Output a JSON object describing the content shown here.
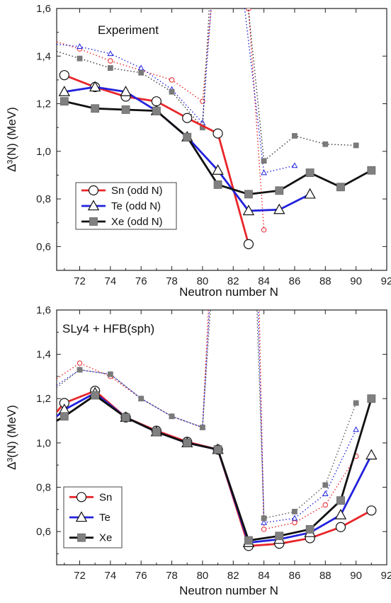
{
  "chart_data": [
    {
      "type": "line",
      "annotation": "Experiment",
      "xlabel": "Neutron number N",
      "ylabel": "Δ³(N) (MeV)",
      "xlim": [
        70.5,
        92
      ],
      "ylim": [
        0.5,
        1.6
      ],
      "xticks": [
        "72",
        "74",
        "76",
        "78",
        "80",
        "82",
        "84",
        "86",
        "88",
        "90",
        "92"
      ],
      "yticks": [
        "0,6",
        "0,8",
        "1,0",
        "1,2",
        "1,4",
        "1,6"
      ],
      "legend_position": "lower-left",
      "legend": [
        {
          "label": "Sn (odd N)",
          "color": "#e8262a",
          "marker": "circle"
        },
        {
          "label": "Te (odd N)",
          "color": "#2222dd",
          "marker": "triangle"
        },
        {
          "label": "Xe (odd N)",
          "color": "#111111",
          "marker": "square"
        }
      ],
      "series": [
        {
          "name": "Sn (odd N)",
          "style": "solid",
          "color": "#e8262a",
          "marker": "circle",
          "x": [
            71,
            73,
            75,
            77,
            79,
            81,
            83
          ],
          "y": [
            1.32,
            1.27,
            1.23,
            1.21,
            1.14,
            1.075,
            0.61
          ]
        },
        {
          "name": "Te (odd N)",
          "style": "solid",
          "color": "#2222dd",
          "marker": "triangle",
          "x": [
            71,
            73,
            75,
            77,
            79,
            81,
            83,
            85,
            87
          ],
          "y": [
            1.25,
            1.27,
            1.25,
            1.17,
            1.06,
            0.92,
            0.75,
            0.755,
            0.82
          ]
        },
        {
          "name": "Xe (odd N)",
          "style": "solid",
          "color": "#111111",
          "marker": "square",
          "x": [
            71,
            73,
            75,
            77,
            79,
            81,
            83,
            85,
            87,
            89,
            91
          ],
          "y": [
            1.21,
            1.18,
            1.175,
            1.17,
            1.06,
            0.86,
            0.82,
            0.835,
            0.91,
            0.85,
            0.92
          ]
        },
        {
          "style": "dotted",
          "color": "#e8262a",
          "marker": "circle-small",
          "x": [
            70.5,
            72,
            74,
            76,
            78,
            80,
            81,
            82,
            83,
            84
          ],
          "y": [
            1.46,
            1.43,
            1.38,
            1.34,
            1.3,
            1.21,
            1.9,
            1.9,
            1.6,
            0.67
          ]
        },
        {
          "style": "dotted",
          "color": "#2222dd",
          "marker": "triangle-small",
          "x": [
            70.5,
            72,
            74,
            76,
            78,
            80,
            80.9,
            82.2,
            84,
            86
          ],
          "y": [
            1.45,
            1.44,
            1.41,
            1.35,
            1.26,
            1.12,
            1.9,
            1.9,
            0.91,
            0.94
          ]
        },
        {
          "style": "dotted",
          "color": "#333333",
          "marker": "square-small",
          "x": [
            70.5,
            72,
            74,
            76,
            78,
            80,
            80.7,
            82.5,
            84,
            86,
            88,
            90
          ],
          "y": [
            1.42,
            1.39,
            1.35,
            1.33,
            1.25,
            1.1,
            1.9,
            1.9,
            0.96,
            1.065,
            1.03,
            1.025
          ]
        }
      ]
    },
    {
      "type": "line",
      "annotation": "SLy4 + HFB(sph)",
      "xlabel": "Neutron number N",
      "ylabel": "Δ³(N) (MeV)",
      "xlim": [
        70.5,
        92
      ],
      "ylim": [
        0.45,
        1.6
      ],
      "xticks": [
        "72",
        "74",
        "76",
        "78",
        "80",
        "82",
        "84",
        "86",
        "88",
        "90",
        "92"
      ],
      "yticks": [
        "0,6",
        "0,8",
        "1,0",
        "1,2",
        "1,4",
        "1,6"
      ],
      "legend_position": "lower-left",
      "legend": [
        {
          "label": "Sn",
          "color": "#e8262a",
          "marker": "circle"
        },
        {
          "label": "Te",
          "color": "#2222dd",
          "marker": "triangle"
        },
        {
          "label": "Xe",
          "color": "#111111",
          "marker": "square"
        }
      ],
      "series": [
        {
          "name": "Sn",
          "style": "solid",
          "color": "#e8262a",
          "marker": "circle",
          "x": [
            70.5,
            71,
            73,
            75,
            77,
            79,
            81,
            83,
            85,
            87,
            89,
            91
          ],
          "y": [
            1.14,
            1.18,
            1.235,
            1.115,
            1.055,
            1.005,
            0.97,
            0.535,
            0.545,
            0.57,
            0.62,
            0.695
          ]
        },
        {
          "name": "Te",
          "style": "solid",
          "color": "#2222dd",
          "marker": "triangle",
          "x": [
            70.5,
            71,
            73,
            75,
            77,
            79,
            81,
            83,
            85,
            87,
            89,
            91
          ],
          "y": [
            1.12,
            1.15,
            1.225,
            1.115,
            1.05,
            1.0,
            0.97,
            0.55,
            0.565,
            0.595,
            0.675,
            0.945
          ]
        },
        {
          "name": "Xe",
          "style": "solid",
          "color": "#111111",
          "marker": "square",
          "x": [
            70.5,
            71,
            73,
            75,
            77,
            79,
            81,
            83,
            85,
            87,
            89,
            91
          ],
          "y": [
            1.1,
            1.12,
            1.215,
            1.115,
            1.05,
            1.0,
            0.97,
            0.56,
            0.58,
            0.61,
            0.74,
            1.2
          ]
        },
        {
          "style": "dotted",
          "color": "#e8262a",
          "marker": "circle-small",
          "x": [
            70.5,
            72,
            74,
            76,
            78,
            80,
            80.6,
            83.6,
            84,
            86,
            88,
            90
          ],
          "y": [
            1.29,
            1.36,
            1.3,
            1.2,
            1.12,
            1.07,
            1.9,
            1.9,
            0.61,
            0.64,
            0.72,
            0.94
          ]
        },
        {
          "style": "dotted",
          "color": "#2222dd",
          "marker": "triangle-small",
          "x": [
            70.5,
            72,
            74,
            76,
            78,
            80,
            80.7,
            83.5,
            84,
            86,
            88,
            90
          ],
          "y": [
            1.26,
            1.33,
            1.31,
            1.2,
            1.12,
            1.07,
            1.9,
            1.9,
            0.64,
            0.66,
            0.77,
            1.06
          ]
        },
        {
          "style": "dotted",
          "color": "#555555",
          "marker": "square-small",
          "x": [
            70.5,
            72,
            74,
            76,
            78,
            80,
            80.8,
            83.4,
            84,
            86,
            88,
            90
          ],
          "y": [
            1.25,
            1.33,
            1.31,
            1.2,
            1.12,
            1.07,
            1.9,
            1.9,
            0.66,
            0.69,
            0.81,
            1.18
          ]
        }
      ]
    }
  ]
}
